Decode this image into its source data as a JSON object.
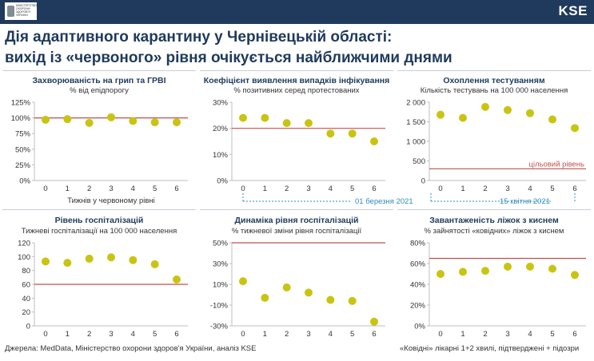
{
  "header": {
    "logo_text": "МІНІСТЕРСТВО ОХОРОНИ ЗДОРОВ'Я УКРАЇНИ",
    "brand": "KSE",
    "title_line1": "Дія адаптивного карантину у Чернівецькій області:",
    "title_line2": "вихід із «червоного» рівня очікується найближчими днями"
  },
  "footer": {
    "source": "Джерела: MedData, Міністерство охорони здоров'я України, аналіз KSE",
    "note": "«Ковідні» лікарні 1+2 хвилі, підтверджені + підозри"
  },
  "colors": {
    "dot": "#c9c412",
    "threshold": "#c0504d",
    "annotation": "#2e8fc0",
    "title": "#1f3a5c"
  },
  "chart_data": [
    {
      "type": "scatter",
      "title": "Захворюваність на грип та ГРВІ",
      "subtitle": "% від епідпорогу",
      "xlabel": "Тижнів у червоному рівні",
      "x": [
        0,
        1,
        2,
        3,
        4,
        5,
        6
      ],
      "values": [
        97,
        98,
        92,
        101,
        95,
        93,
        93
      ],
      "ylim": [
        0,
        125
      ],
      "yticks": [
        0,
        25,
        50,
        75,
        100,
        125
      ],
      "ytick_labels": [
        "0%",
        "25%",
        "50%",
        "75%",
        "100%",
        "125%"
      ],
      "threshold": 100,
      "threshold_label": "",
      "annotation": ""
    },
    {
      "type": "scatter",
      "title": "Коефіцієнт виявлення випадків інфікування",
      "subtitle": "% позитивних серед протестованих",
      "xlabel": "",
      "x": [
        0,
        1,
        2,
        3,
        4,
        5,
        6
      ],
      "values": [
        24,
        24,
        22,
        22,
        18,
        18,
        15
      ],
      "ylim": [
        0,
        30
      ],
      "yticks": [
        0,
        10,
        20,
        30
      ],
      "ytick_labels": [
        "0%",
        "10%",
        "20%",
        "30%"
      ],
      "threshold": 20,
      "threshold_label": "",
      "annotation": "01 березня 2021"
    },
    {
      "type": "scatter",
      "title": "Охоплення тестуванням",
      "subtitle": "Кількість тестувань на 100 000 населення",
      "xlabel": "",
      "x": [
        0,
        1,
        2,
        3,
        4,
        5,
        6
      ],
      "values": [
        1680,
        1600,
        1880,
        1800,
        1720,
        1560,
        1340
      ],
      "ylim": [
        0,
        2000
      ],
      "yticks": [
        0,
        500,
        1000,
        1500,
        2000
      ],
      "ytick_labels": [
        "0",
        "500",
        "1 000",
        "1 500",
        "2 000"
      ],
      "threshold": 300,
      "threshold_label": "цільовий рівень",
      "annotation": "15 квітня 2021"
    },
    {
      "type": "scatter",
      "title": "Рівень госпіталізацій",
      "subtitle": "Тижневі госпіталізації на 100 000 населення",
      "xlabel": "",
      "x": [
        0,
        1,
        2,
        3,
        4,
        5,
        6
      ],
      "values": [
        93,
        91,
        97,
        99,
        95,
        89,
        67
      ],
      "ylim": [
        0,
        120
      ],
      "yticks": [
        0,
        20,
        40,
        60,
        80,
        100,
        120
      ],
      "ytick_labels": [
        "0",
        "20",
        "40",
        "60",
        "80",
        "100",
        "120"
      ],
      "threshold": 60,
      "threshold_label": "",
      "annotation": ""
    },
    {
      "type": "scatter",
      "title": "Динаміка рівня госпіталізацій",
      "subtitle": "% тижневої зміни рівня госпіталізації",
      "xlabel": "",
      "x": [
        0,
        1,
        2,
        3,
        4,
        5,
        6
      ],
      "values": [
        13,
        -3,
        7,
        2,
        -5,
        -6,
        -26
      ],
      "ylim": [
        -30,
        50
      ],
      "yticks": [
        -30,
        -10,
        10,
        30,
        50
      ],
      "ytick_labels": [
        "-30%",
        "-10%",
        "10%",
        "30%",
        "50%"
      ],
      "threshold": 50,
      "threshold_label": "",
      "annotation": ""
    },
    {
      "type": "scatter",
      "title": "Завантаженість ліжок з киснем",
      "subtitle": "% зайнятості «ковідних» ліжок з киснем",
      "xlabel": "",
      "x": [
        0,
        1,
        2,
        3,
        4,
        5,
        6
      ],
      "values": [
        50,
        52,
        53,
        57,
        57,
        55,
        49
      ],
      "ylim": [
        0,
        80
      ],
      "yticks": [
        0,
        20,
        40,
        60,
        80
      ],
      "ytick_labels": [
        "0%",
        "20%",
        "40%",
        "60%",
        "80%"
      ],
      "threshold": 65,
      "threshold_label": "",
      "annotation": ""
    }
  ]
}
